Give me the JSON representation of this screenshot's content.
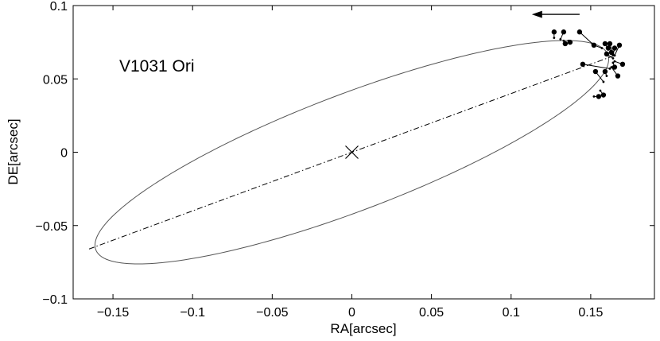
{
  "chart_data": {
    "type": "scatter",
    "title": "",
    "annotation": "V1031 Ori",
    "xlabel": "RA[arcsec]",
    "ylabel": "DE[arcsec]",
    "xlim": [
      -0.175,
      0.19
    ],
    "ylim": [
      -0.1,
      0.1
    ],
    "x_ticks": [
      -0.15,
      -0.1,
      -0.05,
      0,
      0.05,
      0.1,
      0.15
    ],
    "x_tick_labels": [
      "−0.15",
      "−0.1",
      "−0.05",
      "0",
      "0.05",
      "0.1",
      "0.15"
    ],
    "y_ticks": [
      -0.1,
      -0.05,
      0,
      0.05,
      0.1
    ],
    "y_tick_labels": [
      "−0.1",
      "−0.05",
      "0",
      "0.05",
      "0.1"
    ],
    "grid": false,
    "legend": "none",
    "orbit": {
      "center": [
        0,
        0
      ],
      "semi_major_axis": 0.174,
      "semi_minor_axis": 0.0392,
      "position_angle_deg": 22.66,
      "periastron": [
        -0.165,
        -0.066
      ],
      "apastron": [
        0.165,
        0.066
      ]
    },
    "center_marker": [
      0,
      0
    ],
    "motion_arrow": {
      "from": [
        0.143,
        0.094
      ],
      "to": [
        0.113,
        0.094
      ],
      "direction": "left"
    },
    "observations": [
      {
        "x": 0.127,
        "y": 0.082,
        "model": [
          0.127,
          0.078
        ]
      },
      {
        "x": 0.133,
        "y": 0.082,
        "model": [
          0.131,
          0.077
        ]
      },
      {
        "x": 0.134,
        "y": 0.074,
        "model": [
          0.133,
          0.076
        ]
      },
      {
        "x": 0.137,
        "y": 0.075,
        "model": [
          0.136,
          0.076
        ]
      },
      {
        "x": 0.143,
        "y": 0.082,
        "model": [
          0.151,
          0.074
        ]
      },
      {
        "x": 0.152,
        "y": 0.073,
        "model": [
          0.157,
          0.071
        ]
      },
      {
        "x": 0.159,
        "y": 0.074,
        "model": [
          0.161,
          0.07
        ]
      },
      {
        "x": 0.161,
        "y": 0.071,
        "model": [
          0.163,
          0.069
        ]
      },
      {
        "x": 0.162,
        "y": 0.074,
        "model": [
          0.164,
          0.067
        ]
      },
      {
        "x": 0.165,
        "y": 0.071,
        "model": [
          0.164,
          0.066
        ]
      },
      {
        "x": 0.168,
        "y": 0.073,
        "model": [
          0.165,
          0.066
        ]
      },
      {
        "x": 0.163,
        "y": 0.068,
        "model": [
          0.165,
          0.066
        ]
      },
      {
        "x": 0.16,
        "y": 0.067,
        "model": [
          0.164,
          0.064
        ]
      },
      {
        "x": 0.145,
        "y": 0.06,
        "model": [
          0.162,
          0.057
        ]
      },
      {
        "x": 0.165,
        "y": 0.058,
        "model": [
          0.164,
          0.061
        ]
      },
      {
        "x": 0.17,
        "y": 0.06,
        "model": [
          0.165,
          0.062
        ]
      },
      {
        "x": 0.167,
        "y": 0.052,
        "model": [
          0.163,
          0.058
        ]
      },
      {
        "x": 0.159,
        "y": 0.055,
        "model": [
          0.16,
          0.052
        ]
      },
      {
        "x": 0.153,
        "y": 0.055,
        "model": [
          0.158,
          0.048
        ]
      },
      {
        "x": 0.155,
        "y": 0.038,
        "model": [
          0.152,
          0.038
        ]
      },
      {
        "x": 0.158,
        "y": 0.039,
        "model": [
          0.156,
          0.042
        ]
      }
    ]
  },
  "colors": {
    "axes": "#000000",
    "orbit": "#555555",
    "line_of_apsides": "#000000",
    "points": "#000000",
    "residuals": "#000000"
  }
}
